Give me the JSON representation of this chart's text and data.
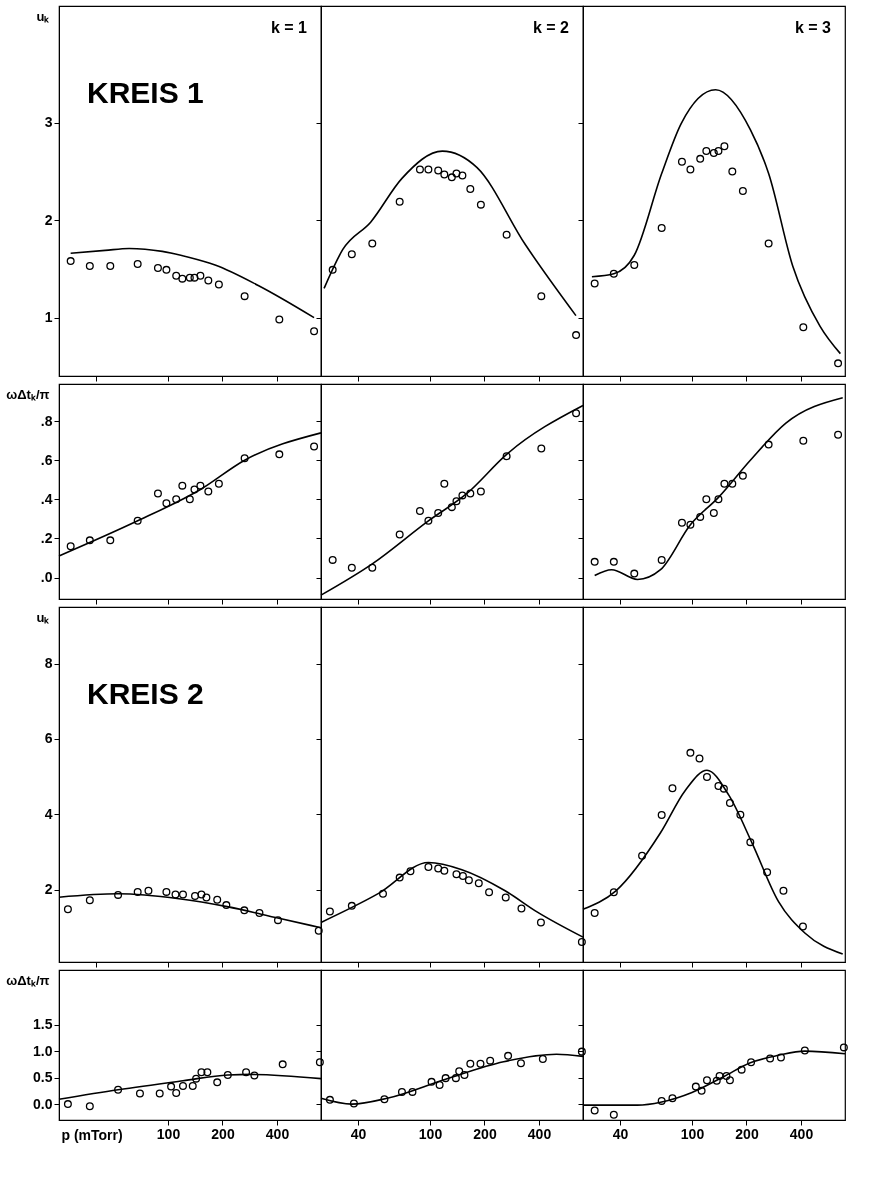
{
  "chart_data": [
    {
      "type": "scatter",
      "title": "k = 1",
      "ylabel": "uₖ",
      "annotations": [
        "KREIS 1"
      ],
      "marker": "circle",
      "log": "x",
      "grid": false,
      "tick_labels": "y",
      "xlim": [
        25,
        700
      ],
      "xticks": [
        40,
        100,
        200,
        400
      ],
      "ylim": [
        0.4,
        4.2
      ],
      "yticks": [
        1,
        2,
        3
      ],
      "series": [
        {
          "color": "#000000",
          "x": [
            29,
            37,
            48,
            68,
            88,
            98,
            111,
            120,
            132,
            140,
            151,
            167,
            191,
            265,
            412,
            641
          ],
          "values": [
            1.58,
            1.53,
            1.53,
            1.55,
            1.51,
            1.49,
            1.43,
            1.4,
            1.41,
            1.41,
            1.43,
            1.38,
            1.34,
            1.22,
            0.98,
            0.86
          ]
        },
        {
          "type": "line",
          "marker": "none",
          "color": "#000000",
          "x": [
            29,
            45,
            61,
            93,
            130,
            182,
            315,
            641
          ],
          "values": [
            1.66,
            1.69,
            1.71,
            1.68,
            1.62,
            1.54,
            1.33,
            1.0
          ]
        }
      ]
    },
    {
      "type": "scatter",
      "title": "k = 2",
      "marker": "circle",
      "log": "x",
      "grid": false,
      "tick_labels": false,
      "xlim": [
        25,
        700
      ],
      "xticks": [
        40,
        100,
        200,
        400
      ],
      "ylim": [
        0.4,
        4.2
      ],
      "yticks": [
        1,
        2,
        3
      ],
      "series": [
        {
          "color": "#000000",
          "x": [
            29,
            37,
            48,
            68,
            88,
            98,
            111,
            120,
            132,
            140,
            151,
            167,
            191,
            265,
            412,
            641
          ],
          "values": [
            1.49,
            1.65,
            1.76,
            2.19,
            2.52,
            2.52,
            2.51,
            2.47,
            2.44,
            2.48,
            2.46,
            2.32,
            2.16,
            1.85,
            1.22,
            0.82
          ]
        },
        {
          "type": "line",
          "marker": "none",
          "color": "#000000",
          "x": [
            26,
            33,
            47,
            70,
            117,
            182,
            336,
            640
          ],
          "values": [
            1.3,
            1.7,
            1.98,
            2.43,
            2.71,
            2.54,
            1.75,
            1.02
          ]
        }
      ]
    },
    {
      "type": "scatter",
      "title": "k = 3",
      "marker": "circle",
      "log": "x",
      "grid": false,
      "tick_labels": false,
      "xlim": [
        25,
        700
      ],
      "xticks": [
        40,
        100,
        200,
        400
      ],
      "ylim": [
        0.4,
        4.2
      ],
      "yticks": [
        1,
        2,
        3
      ],
      "series": [
        {
          "color": "#000000",
          "x": [
            29,
            37,
            48,
            68,
            88,
            98,
            111,
            120,
            132,
            140,
            151,
            167,
            191,
            265,
            412,
            641
          ],
          "values": [
            1.35,
            1.45,
            1.54,
            1.92,
            2.6,
            2.52,
            2.63,
            2.71,
            2.69,
            2.71,
            2.76,
            2.5,
            2.3,
            1.76,
            0.9,
            0.53
          ]
        },
        {
          "type": "line",
          "marker": "none",
          "color": "#000000",
          "x": [
            28,
            37,
            48,
            68,
            87,
            135,
            210,
            265,
            360,
            510,
            660
          ],
          "values": [
            1.42,
            1.45,
            1.64,
            2.48,
            2.99,
            3.34,
            2.93,
            2.48,
            1.53,
            0.91,
            0.63
          ]
        }
      ]
    },
    {
      "type": "scatter",
      "ylabel": "ωΔtₖ/π",
      "marker": "circle",
      "log": "x",
      "grid": false,
      "tick_labels": "y",
      "xlim": [
        25,
        700
      ],
      "xticks": [
        40,
        100,
        200,
        400
      ],
      "ylim": [
        -0.11,
        0.99
      ],
      "yticks": [
        {
          "value": 0,
          "label": ".0"
        },
        {
          "value": 0.2,
          "label": ".2"
        },
        {
          "value": 0.4,
          "label": ".4"
        },
        {
          "value": 0.6,
          "label": ".6"
        },
        {
          "value": 0.8,
          "label": ".8"
        }
      ],
      "series": [
        {
          "color": "#000000",
          "x": [
            29,
            37,
            48,
            68,
            88,
            98,
            111,
            120,
            132,
            140,
            151,
            167,
            191,
            265,
            412,
            641
          ],
          "values": [
            0.16,
            0.19,
            0.19,
            0.29,
            0.43,
            0.38,
            0.4,
            0.47,
            0.4,
            0.45,
            0.47,
            0.44,
            0.48,
            0.61,
            0.63,
            0.67
          ]
        },
        {
          "type": "line",
          "marker": "none",
          "color": "#000000",
          "x": [
            25,
            68,
            151,
            265,
            700
          ],
          "values": [
            0.11,
            0.29,
            0.45,
            0.6,
            0.74
          ]
        }
      ]
    },
    {
      "type": "scatter",
      "marker": "circle",
      "log": "x",
      "grid": false,
      "tick_labels": false,
      "xlim": [
        25,
        700
      ],
      "xticks": [
        40,
        100,
        200,
        400
      ],
      "ylim": [
        -0.11,
        0.99
      ],
      "yticks": [
        0,
        0.2,
        0.4,
        0.6,
        0.8
      ],
      "series": [
        {
          "color": "#000000",
          "x": [
            29,
            37,
            48,
            68,
            88,
            98,
            111,
            120,
            132,
            140,
            151,
            167,
            191,
            265,
            412,
            641
          ],
          "values": [
            0.09,
            0.05,
            0.05,
            0.22,
            0.34,
            0.29,
            0.33,
            0.48,
            0.36,
            0.39,
            0.42,
            0.43,
            0.44,
            0.62,
            0.66,
            0.84
          ]
        },
        {
          "type": "line",
          "marker": "none",
          "color": "#000000",
          "x": [
            25,
            48,
            98,
            160,
            265,
            700
          ],
          "values": [
            -0.09,
            0.07,
            0.29,
            0.43,
            0.63,
            0.88
          ]
        }
      ]
    },
    {
      "type": "scatter",
      "marker": "circle",
      "log": "x",
      "grid": false,
      "tick_labels": false,
      "xlim": [
        25,
        700
      ],
      "xticks": [
        40,
        100,
        200,
        400
      ],
      "ylim": [
        -0.11,
        0.99
      ],
      "yticks": [
        0,
        0.2,
        0.4,
        0.6,
        0.8
      ],
      "series": [
        {
          "color": "#000000",
          "x": [
            29,
            37,
            48,
            68,
            88,
            98,
            111,
            120,
            132,
            140,
            151,
            167,
            191,
            265,
            412,
            641
          ],
          "values": [
            0.08,
            0.08,
            0.02,
            0.09,
            0.28,
            0.27,
            0.31,
            0.4,
            0.33,
            0.4,
            0.48,
            0.48,
            0.52,
            0.68,
            0.7,
            0.73
          ]
        },
        {
          "type": "line",
          "marker": "none",
          "color": "#000000",
          "x": [
            29,
            36,
            50,
            67,
            98,
            140,
            210,
            330,
            680
          ],
          "values": [
            0.01,
            0.04,
            -0.01,
            0.04,
            0.27,
            0.41,
            0.6,
            0.79,
            0.92
          ]
        }
      ]
    },
    {
      "type": "scatter",
      "ylabel": "uₖ",
      "annotations": [
        "KREIS 2"
      ],
      "marker": "circle",
      "log": "x",
      "grid": false,
      "tick_labels": "y",
      "xlim": [
        25,
        700
      ],
      "xticks": [
        40,
        100,
        200,
        400
      ],
      "ylim": [
        0.08,
        9.5
      ],
      "yticks": [
        2,
        4,
        6,
        8
      ],
      "series": [
        {
          "color": "#000000",
          "x": [
            28,
            37,
            53,
            68,
            78,
            98,
            110,
            121,
            141,
            153,
            163,
            187,
            210,
            264,
            320,
            405,
            680
          ],
          "values": [
            1.48,
            1.72,
            1.86,
            1.94,
            1.97,
            1.94,
            1.87,
            1.87,
            1.83,
            1.87,
            1.79,
            1.73,
            1.59,
            1.45,
            1.38,
            1.19,
            0.91
          ]
        },
        {
          "type": "line",
          "marker": "none",
          "color": "#000000",
          "x": [
            25,
            53,
            115,
            212,
            410,
            700
          ],
          "values": [
            1.8,
            1.89,
            1.76,
            1.55,
            1.24,
            0.99
          ]
        }
      ]
    },
    {
      "type": "scatter",
      "marker": "circle",
      "log": "x",
      "grid": false,
      "tick_labels": false,
      "xlim": [
        25,
        700
      ],
      "xticks": [
        40,
        100,
        200,
        400
      ],
      "ylim": [
        0.08,
        9.5
      ],
      "yticks": [
        2,
        4,
        6,
        8
      ],
      "series": [
        {
          "color": "#000000",
          "x": [
            28,
            37,
            55,
            68,
            78,
            98,
            111,
            120,
            140,
            152,
            164,
            186,
            212,
            262,
            320,
            410,
            690
          ],
          "values": [
            1.42,
            1.57,
            1.89,
            2.32,
            2.49,
            2.6,
            2.56,
            2.5,
            2.41,
            2.36,
            2.25,
            2.17,
            1.93,
            1.79,
            1.5,
            1.13,
            0.61
          ]
        },
        {
          "type": "line",
          "marker": "none",
          "color": "#000000",
          "x": [
            25,
            52,
            98,
            150,
            260,
            390,
            700
          ],
          "values": [
            1.13,
            1.9,
            2.72,
            2.53,
            1.97,
            1.41,
            0.74
          ]
        }
      ]
    },
    {
      "type": "scatter",
      "marker": "circle",
      "log": "x",
      "grid": false,
      "tick_labels": false,
      "xlim": [
        25,
        700
      ],
      "xticks": [
        40,
        100,
        200,
        400
      ],
      "ylim": [
        0.08,
        9.5
      ],
      "yticks": [
        2,
        4,
        6,
        8
      ],
      "series": [
        {
          "color": "#000000",
          "x": [
            29,
            37,
            53,
            68,
            78,
            98,
            110,
            121,
            140,
            150,
            162,
            185,
            210,
            260,
            320,
            410
          ],
          "values": [
            1.38,
            1.93,
            2.9,
            3.98,
            4.69,
            5.63,
            5.48,
            4.99,
            4.75,
            4.68,
            4.3,
            3.99,
            3.26,
            2.46,
            1.97,
            1.02
          ]
        },
        {
          "type": "line",
          "marker": "none",
          "color": "#000000",
          "x": [
            25,
            38,
            67,
            92,
            121,
            160,
            215,
            300,
            420,
            680
          ],
          "values": [
            1.48,
            1.97,
            3.51,
            4.64,
            5.17,
            4.5,
            3.23,
            1.69,
            0.85,
            0.29
          ]
        }
      ]
    },
    {
      "type": "scatter",
      "ylabel": "ωΔtₖ/π",
      "xlabel": "p (mTorr)",
      "marker": "circle",
      "log": "x",
      "grid": false,
      "xlim": [
        25,
        700
      ],
      "xticks": [
        100,
        200,
        400
      ],
      "ylim": [
        -0.3,
        2.53
      ],
      "yticks": [
        {
          "value": 0,
          "label": "0.0"
        },
        {
          "value": 0.5,
          "label": "0.5"
        },
        {
          "value": 1,
          "label": "1.0"
        },
        {
          "value": 1.5,
          "label": "1.5"
        }
      ],
      "series": [
        {
          "color": "#000000",
          "x": [
            28,
            37,
            53,
            70,
            90,
            104,
            111,
            121,
            137,
            143,
            153,
            165,
            187,
            214,
            270,
            300,
            430,
            690
          ],
          "values": [
            0.0,
            -0.04,
            0.27,
            0.2,
            0.2,
            0.33,
            0.21,
            0.34,
            0.34,
            0.48,
            0.6,
            0.6,
            0.41,
            0.55,
            0.6,
            0.54,
            0.75,
            0.79
          ]
        },
        {
          "type": "line",
          "marker": "none",
          "color": "#000000",
          "x": [
            25,
            53,
            121,
            214,
            290,
            700
          ],
          "values": [
            0.09,
            0.27,
            0.44,
            0.55,
            0.56,
            0.48
          ]
        }
      ]
    },
    {
      "type": "scatter",
      "marker": "circle",
      "log": "x",
      "grid": false,
      "tick_labels": "x",
      "xlim": [
        25,
        700
      ],
      "xticks": [
        40,
        100,
        200,
        400
      ],
      "ylim": [
        -0.3,
        2.53
      ],
      "yticks": [
        0,
        0.5,
        1,
        1.5
      ],
      "series": [
        {
          "color": "#000000",
          "x": [
            28,
            38,
            56,
            70,
            80,
            102,
            113,
            122,
            139,
            145,
            155,
            167,
            190,
            215,
            270,
            318,
            420,
            690
          ],
          "values": [
            0.08,
            0.01,
            0.09,
            0.23,
            0.23,
            0.42,
            0.36,
            0.49,
            0.49,
            0.62,
            0.55,
            0.76,
            0.76,
            0.82,
            0.91,
            0.77,
            0.85,
            0.99
          ]
        },
        {
          "type": "line",
          "marker": "none",
          "color": "#000000",
          "x": [
            25,
            37,
            58,
            122,
            255,
            500,
            700
          ],
          "values": [
            0.11,
            0.0,
            0.11,
            0.47,
            0.8,
            0.94,
            0.9
          ]
        }
      ]
    },
    {
      "type": "scatter",
      "marker": "circle",
      "log": "x",
      "grid": false,
      "tick_labels": "x",
      "xlim": [
        25,
        700
      ],
      "xticks": [
        40,
        100,
        200,
        400
      ],
      "ylim": [
        -0.3,
        2.53
      ],
      "yticks": [
        0,
        0.5,
        1,
        1.5
      ],
      "series": [
        {
          "color": "#000000",
          "x": [
            29,
            37,
            68,
            78,
            105,
            113,
            121,
            137,
            142,
            155,
            162,
            188,
            212,
            270,
            310,
            420,
            690
          ],
          "values": [
            -0.12,
            -0.2,
            0.06,
            0.11,
            0.33,
            0.25,
            0.45,
            0.44,
            0.53,
            0.53,
            0.45,
            0.65,
            0.79,
            0.86,
            0.88,
            1.01,
            1.07
          ]
        },
        {
          "type": "line",
          "marker": "none",
          "color": "#000000",
          "x": [
            25,
            50,
            68,
            100,
            150,
            210,
            300,
            420,
            700
          ],
          "values": [
            -0.02,
            -0.02,
            0.04,
            0.22,
            0.52,
            0.78,
            0.92,
            1.0,
            0.95
          ]
        }
      ]
    }
  ]
}
